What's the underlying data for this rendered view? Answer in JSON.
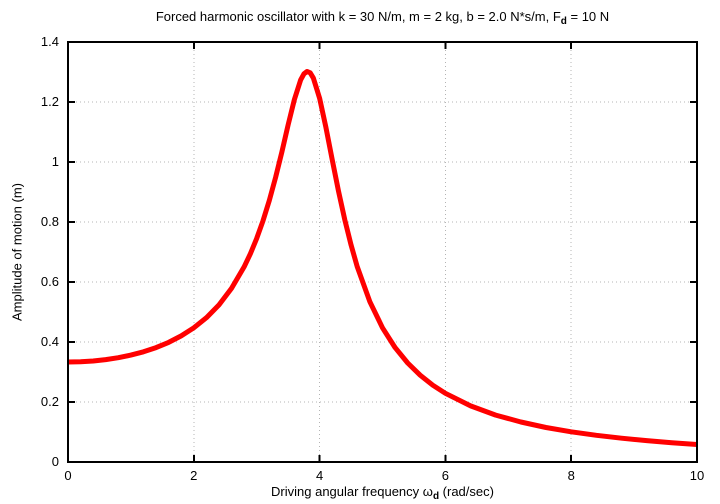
{
  "colors": {
    "background": "#ffffff",
    "border": "#000000",
    "grid": "#b4b4b4",
    "text": "#000000",
    "curve": "#ff0000"
  },
  "chart_data": {
    "type": "line",
    "title": "Forced harmonic oscillator with k = 30 N/m, m = 2 kg, b = 2.0 N*s/m, F_d = 10 N",
    "title_parts": [
      {
        "text": "Forced harmonic oscillator with k = 30 N/m, m = 2 kg, b = 2.0 N*s/m, F"
      },
      {
        "text": "d",
        "subscript": true
      },
      {
        "text": " = 10 N"
      }
    ],
    "xlabel": "Driving angular frequency ω_d (rad/sec)",
    "xlabel_parts": [
      {
        "text": "Driving angular frequency ω"
      },
      {
        "text": "d",
        "subscript": true
      },
      {
        "text": " (rad/sec)"
      }
    ],
    "ylabel": "Amplitude of motion (m)",
    "xlim": [
      0,
      10
    ],
    "ylim": [
      0,
      1.4
    ],
    "xticks": [
      0,
      2,
      4,
      6,
      8,
      10
    ],
    "xtick_labels": [
      "0",
      "2",
      "4",
      "6",
      "8",
      "10"
    ],
    "yticks": [
      0,
      0.2,
      0.4,
      0.6,
      0.8,
      1,
      1.2,
      1.4
    ],
    "ytick_labels": [
      "0",
      "0.2",
      "0.4",
      "0.6",
      "0.8",
      "1",
      "1.2",
      "1.4"
    ],
    "grid": true,
    "grid_style": "dotted",
    "legend": "none",
    "series": [
      {
        "name": "Amplitude of motion",
        "color": "#ff0000",
        "line_width": 5,
        "x": [
          0,
          0.2,
          0.4,
          0.6,
          0.8,
          1,
          1.2,
          1.4,
          1.6,
          1.8,
          2,
          2.2,
          2.4,
          2.6,
          2.8,
          2.9,
          3,
          3.1,
          3.2,
          3.3,
          3.4,
          3.5,
          3.6,
          3.7,
          3.75,
          3.8,
          3.85,
          3.9,
          4,
          4.1,
          4.2,
          4.3,
          4.4,
          4.5,
          4.6,
          4.8,
          5,
          5.2,
          5.4,
          5.6,
          5.8,
          6,
          6.4,
          6.8,
          7.2,
          7.6,
          8,
          8.4,
          8.8,
          9.2,
          9.6,
          10
        ],
        "y": [
          0.3333,
          0.3342,
          0.3368,
          0.3412,
          0.3477,
          0.3562,
          0.3673,
          0.3812,
          0.3986,
          0.4203,
          0.4472,
          0.481,
          0.5237,
          0.5787,
          0.6504,
          0.6944,
          0.7454,
          0.8041,
          0.8718,
          0.9486,
          1.0338,
          1.1233,
          1.2083,
          1.2739,
          1.2935,
          1.3017,
          1.2973,
          1.2802,
          1.2127,
          1.1157,
          1.0079,
          0.9029,
          0.8072,
          0.7231,
          0.6504,
          0.534,
          0.4472,
          0.3812,
          0.3299,
          0.2892,
          0.2561,
          0.2289,
          0.187,
          0.1564,
          0.1332,
          0.1151,
          0.1007,
          0.089,
          0.0793,
          0.0712,
          0.0643,
          0.0584
        ]
      }
    ]
  }
}
